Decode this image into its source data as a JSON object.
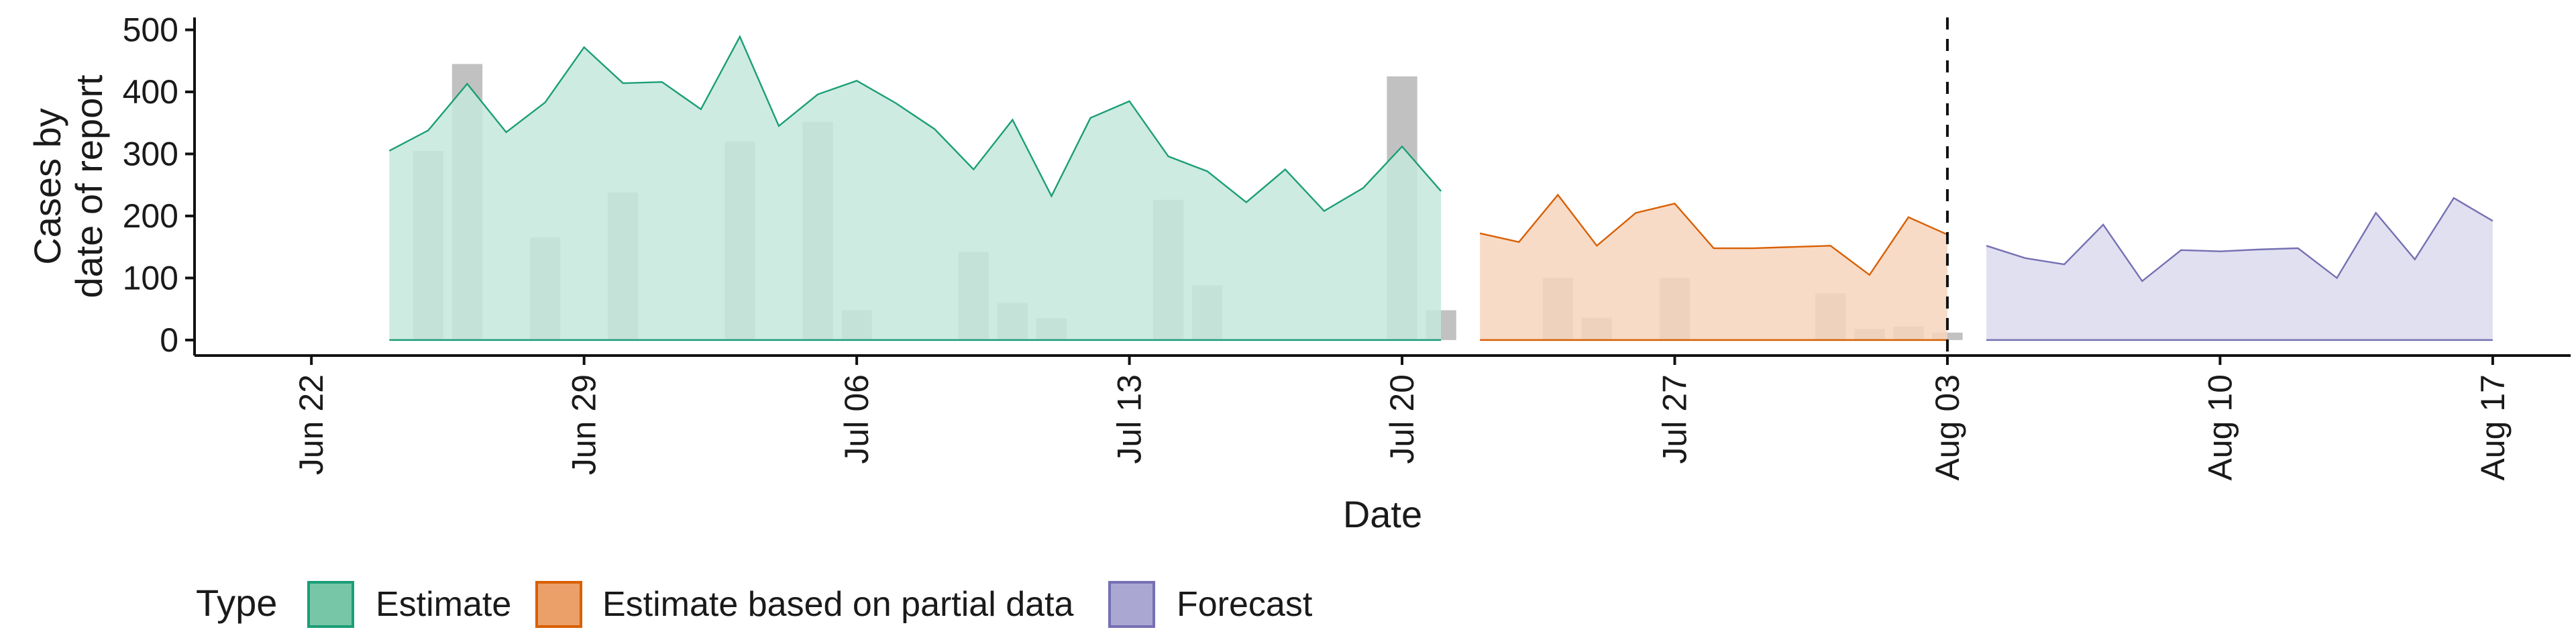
{
  "chart_data": {
    "type": "area",
    "xlabel": "Date",
    "ylabel_lines": [
      "Cases by",
      "date of report"
    ],
    "ylim": [
      -25,
      520
    ],
    "yticks": [
      0,
      100,
      200,
      300,
      400,
      500
    ],
    "xlim": [
      "2020-06-19",
      "2020-08-19"
    ],
    "xticks": [
      "2020-06-22",
      "2020-06-29",
      "2020-07-06",
      "2020-07-13",
      "2020-07-20",
      "2020-07-27",
      "2020-08-03",
      "2020-08-10",
      "2020-08-17"
    ],
    "xtick_labels": [
      "Jun 22",
      "Jun 29",
      "Jul 06",
      "Jul 13",
      "Jul 20",
      "Jul 27",
      "Aug 03",
      "Aug 10",
      "Aug 17"
    ],
    "vline_date": "2020-08-03",
    "grid": false,
    "legend": {
      "title": "Type",
      "position": "bottom",
      "entries": [
        "Estimate",
        "Estimate based on partial data",
        "Forecast"
      ]
    },
    "series": [
      {
        "name": "Estimate",
        "fill": "#c5e7dc",
        "stroke": "#1b9e77",
        "swatch": "#78c6a8",
        "points": [
          [
            "2020-06-24",
            305
          ],
          [
            "2020-06-25",
            338
          ],
          [
            "2020-06-26",
            413
          ],
          [
            "2020-06-27",
            335
          ],
          [
            "2020-06-28",
            383
          ],
          [
            "2020-06-29",
            472
          ],
          [
            "2020-06-30",
            414
          ],
          [
            "2020-07-01",
            416
          ],
          [
            "2020-07-02",
            372
          ],
          [
            "2020-07-03",
            489
          ],
          [
            "2020-07-04",
            345
          ],
          [
            "2020-07-05",
            396
          ],
          [
            "2020-07-06",
            418
          ],
          [
            "2020-07-07",
            382
          ],
          [
            "2020-07-08",
            340
          ],
          [
            "2020-07-09",
            275
          ],
          [
            "2020-07-10",
            355
          ],
          [
            "2020-07-11",
            232
          ],
          [
            "2020-07-12",
            358
          ],
          [
            "2020-07-13",
            385
          ],
          [
            "2020-07-14",
            296
          ],
          [
            "2020-07-15",
            272
          ],
          [
            "2020-07-16",
            222
          ],
          [
            "2020-07-17",
            275
          ],
          [
            "2020-07-18",
            208
          ],
          [
            "2020-07-19",
            245
          ],
          [
            "2020-07-20",
            312
          ],
          [
            "2020-07-21",
            240
          ]
        ]
      },
      {
        "name": "Estimate based on partial data",
        "fill": "#f6d5bd",
        "stroke": "#d95f02",
        "swatch": "#eba06a",
        "points": [
          [
            "2020-07-22",
            172
          ],
          [
            "2020-07-23",
            158
          ],
          [
            "2020-07-24",
            234
          ],
          [
            "2020-07-25",
            152
          ],
          [
            "2020-07-26",
            205
          ],
          [
            "2020-07-27",
            220
          ],
          [
            "2020-07-28",
            148
          ],
          [
            "2020-07-29",
            148
          ],
          [
            "2020-07-30",
            150
          ],
          [
            "2020-07-31",
            152
          ],
          [
            "2020-08-01",
            105
          ],
          [
            "2020-08-02",
            198
          ],
          [
            "2020-08-03",
            170
          ]
        ]
      },
      {
        "name": "Forecast",
        "fill": "#dcdbed",
        "stroke": "#7570b3",
        "swatch": "#aaa7d2",
        "points": [
          [
            "2020-08-04",
            152
          ],
          [
            "2020-08-05",
            132
          ],
          [
            "2020-08-06",
            122
          ],
          [
            "2020-08-07",
            186
          ],
          [
            "2020-08-08",
            95
          ],
          [
            "2020-08-09",
            145
          ],
          [
            "2020-08-10",
            143
          ],
          [
            "2020-08-11",
            146
          ],
          [
            "2020-08-12",
            148
          ],
          [
            "2020-08-13",
            100
          ],
          [
            "2020-08-14",
            205
          ],
          [
            "2020-08-15",
            130
          ],
          [
            "2020-08-16",
            229
          ],
          [
            "2020-08-17",
            192
          ]
        ]
      }
    ],
    "reported_cases": {
      "color": "#a0a0a0",
      "opacity": 0.65,
      "points": [
        [
          "2020-06-24",
          0
        ],
        [
          "2020-06-25",
          305
        ],
        [
          "2020-06-26",
          445
        ],
        [
          "2020-06-27",
          0
        ],
        [
          "2020-06-28",
          165
        ],
        [
          "2020-06-29",
          0
        ],
        [
          "2020-06-30",
          238
        ],
        [
          "2020-07-01",
          0
        ],
        [
          "2020-07-02",
          0
        ],
        [
          "2020-07-03",
          320
        ],
        [
          "2020-07-04",
          0
        ],
        [
          "2020-07-05",
          352
        ],
        [
          "2020-07-06",
          48
        ],
        [
          "2020-07-07",
          0
        ],
        [
          "2020-07-08",
          0
        ],
        [
          "2020-07-09",
          142
        ],
        [
          "2020-07-10",
          60
        ],
        [
          "2020-07-11",
          35
        ],
        [
          "2020-07-12",
          0
        ],
        [
          "2020-07-13",
          0
        ],
        [
          "2020-07-14",
          226
        ],
        [
          "2020-07-15",
          88
        ],
        [
          "2020-07-16",
          0
        ],
        [
          "2020-07-17",
          0
        ],
        [
          "2020-07-18",
          0
        ],
        [
          "2020-07-19",
          0
        ],
        [
          "2020-07-20",
          425
        ],
        [
          "2020-07-21",
          48
        ],
        [
          "2020-07-22",
          0
        ],
        [
          "2020-07-23",
          0
        ],
        [
          "2020-07-24",
          100
        ],
        [
          "2020-07-25",
          36
        ],
        [
          "2020-07-26",
          0
        ],
        [
          "2020-07-27",
          100
        ],
        [
          "2020-07-28",
          0
        ],
        [
          "2020-07-29",
          0
        ],
        [
          "2020-07-30",
          0
        ],
        [
          "2020-07-31",
          75
        ],
        [
          "2020-08-01",
          18
        ],
        [
          "2020-08-02",
          22
        ],
        [
          "2020-08-03",
          12
        ]
      ]
    }
  }
}
